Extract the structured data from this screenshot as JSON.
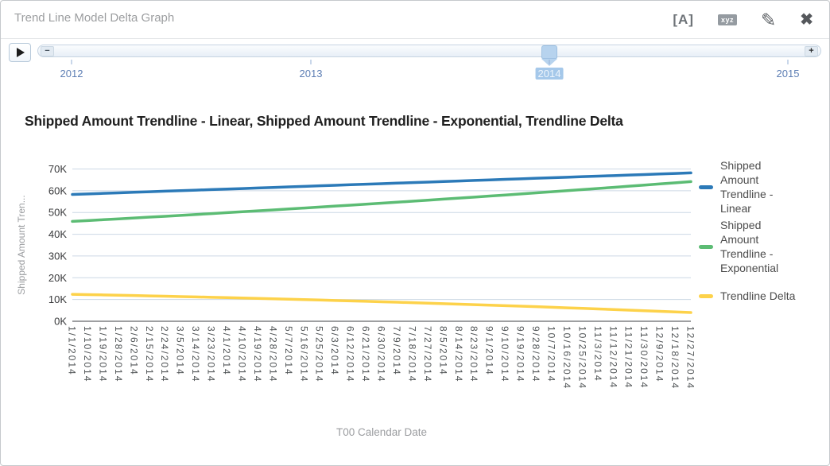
{
  "header": {
    "title": "Trend Line Model Delta Graph",
    "icons": {
      "font_label": "[A]",
      "xyz_label": "xyz",
      "edit_glyph": "✎",
      "close_glyph": "✖"
    }
  },
  "timeline": {
    "years": [
      "2012",
      "2013",
      "2014",
      "2015"
    ],
    "selected_year": "2014",
    "zoom_out_glyph": "−",
    "zoom_in_glyph": "+"
  },
  "chart_data": {
    "type": "line",
    "title": "Shipped Amount Trendline - Linear, Shipped Amount Trendline - Exponential, Trendline Delta",
    "xlabel": "T00 Calendar Date",
    "ylabel": "Shipped Amount Tren...",
    "grid": true,
    "legend_position": "right",
    "ylim": [
      0,
      70000
    ],
    "yticks": [
      0,
      10000,
      20000,
      30000,
      40000,
      50000,
      60000,
      70000
    ],
    "ytick_labels": [
      "0K",
      "10K",
      "20K",
      "30K",
      "40K",
      "50K",
      "60K",
      "70K"
    ],
    "x": [
      "1/1/2014",
      "1/10/2014",
      "1/19/2014",
      "1/28/2014",
      "2/6/2014",
      "2/15/2014",
      "2/24/2014",
      "3/5/2014",
      "3/14/2014",
      "3/23/2014",
      "4/1/2014",
      "4/10/2014",
      "4/19/2014",
      "4/28/2014",
      "5/7/2014",
      "5/16/2014",
      "5/25/2014",
      "6/3/2014",
      "6/12/2014",
      "6/21/2014",
      "6/30/2014",
      "7/9/2014",
      "7/18/2014",
      "7/27/2014",
      "8/5/2014",
      "8/14/2014",
      "8/23/2014",
      "9/1/2014",
      "9/10/2014",
      "9/19/2014",
      "9/28/2014",
      "10/7/2014",
      "10/16/2014",
      "10/25/2014",
      "11/3/2014",
      "11/12/2014",
      "11/21/2014",
      "11/30/2014",
      "12/9/2014",
      "12/18/2014",
      "12/27/2014"
    ],
    "series": [
      {
        "name": "Shipped Amount Trendline - Linear",
        "color": "#2c7ab8",
        "values": [
          58300,
          58550,
          58800,
          59040,
          59290,
          59540,
          59790,
          60030,
          60280,
          60530,
          60780,
          61020,
          61270,
          61520,
          61770,
          62010,
          62260,
          62510,
          62760,
          63000,
          63250,
          63500,
          63750,
          63990,
          64240,
          64490,
          64740,
          64980,
          65230,
          65480,
          65730,
          65970,
          66220,
          66470,
          66720,
          66960,
          67210,
          67460,
          67710,
          67950,
          68200
        ]
      },
      {
        "name": "Shipped Amount Trendline - Exponential",
        "color": "#5cbc74",
        "values": [
          45900,
          46290,
          46680,
          47070,
          47470,
          47870,
          48270,
          48680,
          49090,
          49500,
          49920,
          50340,
          50760,
          51190,
          51620,
          52050,
          52490,
          52940,
          53380,
          53830,
          54280,
          54740,
          55200,
          55670,
          56140,
          56610,
          57090,
          57570,
          58050,
          58540,
          59030,
          59530,
          60030,
          60540,
          61050,
          61560,
          62080,
          62600,
          63130,
          63660,
          64200
        ]
      },
      {
        "name": "Trendline Delta",
        "color": "#fdd24a",
        "values": [
          12400,
          12260,
          12120,
          11970,
          11820,
          11670,
          11520,
          11350,
          11190,
          11030,
          10860,
          10680,
          10510,
          10330,
          10150,
          9960,
          9770,
          9570,
          9380,
          9170,
          8970,
          8760,
          8550,
          8320,
          8100,
          7880,
          7650,
          7410,
          7180,
          6940,
          6700,
          6440,
          6190,
          5930,
          5670,
          5400,
          5130,
          4860,
          4580,
          4290,
          4000
        ]
      }
    ]
  }
}
